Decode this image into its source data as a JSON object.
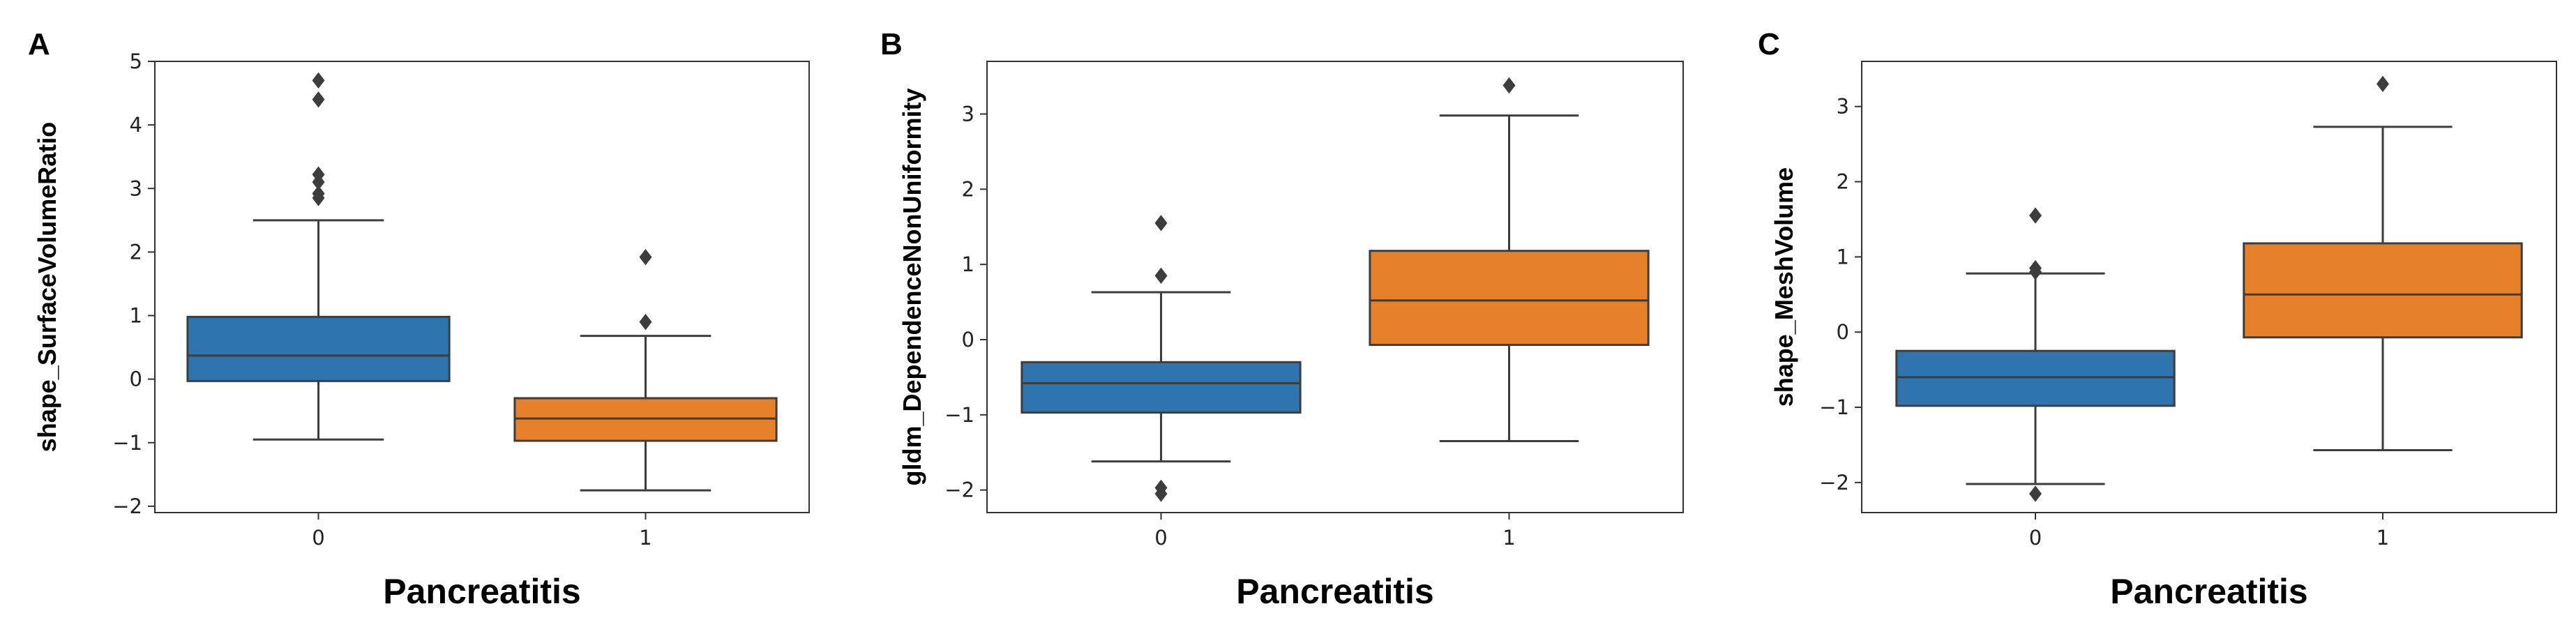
{
  "chart_data": [
    {
      "type": "box",
      "panel": "A",
      "xlabel": "Pancreatitis",
      "ylabel": "shape_SurfaceVolumeRatio",
      "ylim": [
        -2.1,
        5.0
      ],
      "yticks": [
        -2,
        -1,
        0,
        1,
        2,
        3,
        4,
        5
      ],
      "ytick_labels": [
        "−2",
        "−1",
        "0",
        "1",
        "2",
        "3",
        "4",
        "5"
      ],
      "categories": [
        "0",
        "1"
      ],
      "colors": [
        "#2e75b0",
        "#e6812a"
      ],
      "boxes": [
        {
          "category": "0",
          "whislo": -0.95,
          "q1": -0.03,
          "med": 0.37,
          "q3": 0.98,
          "whishi": 2.5,
          "fliers": [
            2.85,
            2.92,
            3.1,
            3.22,
            4.4,
            4.7
          ]
        },
        {
          "category": "1",
          "whislo": -1.75,
          "q1": -0.97,
          "med": -0.62,
          "q3": -0.3,
          "whishi": 0.68,
          "fliers": [
            0.9,
            1.92
          ]
        }
      ]
    },
    {
      "type": "box",
      "panel": "B",
      "xlabel": "Pancreatitis",
      "ylabel": "gldm_DependenceNonUniformity",
      "ylim": [
        -2.3,
        3.7
      ],
      "yticks": [
        -2,
        -1,
        0,
        1,
        2,
        3
      ],
      "ytick_labels": [
        "−2",
        "−1",
        "0",
        "1",
        "2",
        "3"
      ],
      "categories": [
        "0",
        "1"
      ],
      "colors": [
        "#2e75b0",
        "#e6812a"
      ],
      "boxes": [
        {
          "category": "0",
          "whislo": -1.62,
          "q1": -0.97,
          "med": -0.58,
          "q3": -0.3,
          "whishi": 0.63,
          "fliers": [
            -2.05,
            -1.97,
            0.85,
            1.55
          ]
        },
        {
          "category": "1",
          "whislo": -1.35,
          "q1": -0.07,
          "med": 0.52,
          "q3": 1.18,
          "whishi": 2.98,
          "fliers": [
            3.38
          ]
        }
      ]
    },
    {
      "type": "box",
      "panel": "C",
      "xlabel": "Pancreatitis",
      "ylabel": "shape_MeshVolume",
      "ylim": [
        -2.4,
        3.6
      ],
      "yticks": [
        -2,
        -1,
        0,
        1,
        2,
        3
      ],
      "ytick_labels": [
        "−2",
        "−1",
        "0",
        "1",
        "2",
        "3"
      ],
      "categories": [
        "0",
        "1"
      ],
      "colors": [
        "#2e75b0",
        "#e6812a"
      ],
      "boxes": [
        {
          "category": "0",
          "whislo": -2.02,
          "q1": -0.98,
          "med": -0.6,
          "q3": -0.25,
          "whishi": 0.78,
          "fliers": [
            -2.15,
            0.8,
            0.85,
            1.55
          ]
        },
        {
          "category": "1",
          "whislo": -1.57,
          "q1": -0.07,
          "med": 0.5,
          "q3": 1.18,
          "whishi": 2.73,
          "fliers": [
            3.3
          ]
        }
      ]
    }
  ]
}
